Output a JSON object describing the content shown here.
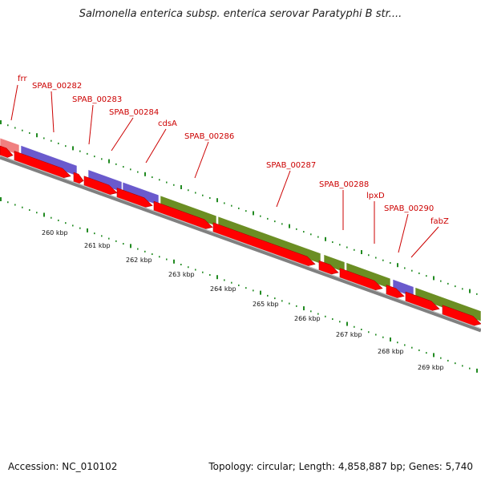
{
  "title": "Salmonella enterica subsp. enterica serovar Paratyphi B str....",
  "footer": {
    "accession": "Accession: NC_010102",
    "stats": "Topology: circular; Length: 4,858,887 bp; Genes: 5,740"
  },
  "colors": {
    "cds_forward": "#ff0000",
    "gene_green": "#6b8e23",
    "gene_blue": "#6a5acd",
    "gene_pink": "#f08080",
    "backbone": "#808080",
    "gc_dots": "#228b22",
    "labels": "#cc0000"
  },
  "gene_labels": [
    {
      "text": "frr"
    },
    {
      "text": "SPAB_00282"
    },
    {
      "text": "SPAB_00283"
    },
    {
      "text": "SPAB_00284"
    },
    {
      "text": "cdsA"
    },
    {
      "text": "SPAB_00286"
    },
    {
      "text": "SPAB_00287"
    },
    {
      "text": "SPAB_00288"
    },
    {
      "text": "lpxD"
    },
    {
      "text": "SPAB_00290"
    },
    {
      "text": "fabZ"
    }
  ],
  "tick_labels": [
    {
      "text": "260 kbp"
    },
    {
      "text": "261 kbp"
    },
    {
      "text": "262 kbp"
    },
    {
      "text": "263 kbp"
    },
    {
      "text": "264 kbp"
    },
    {
      "text": "265 kbp"
    },
    {
      "text": "266 kbp"
    },
    {
      "text": "267 kbp"
    },
    {
      "text": "268 kbp"
    },
    {
      "text": "269 kbp"
    }
  ]
}
